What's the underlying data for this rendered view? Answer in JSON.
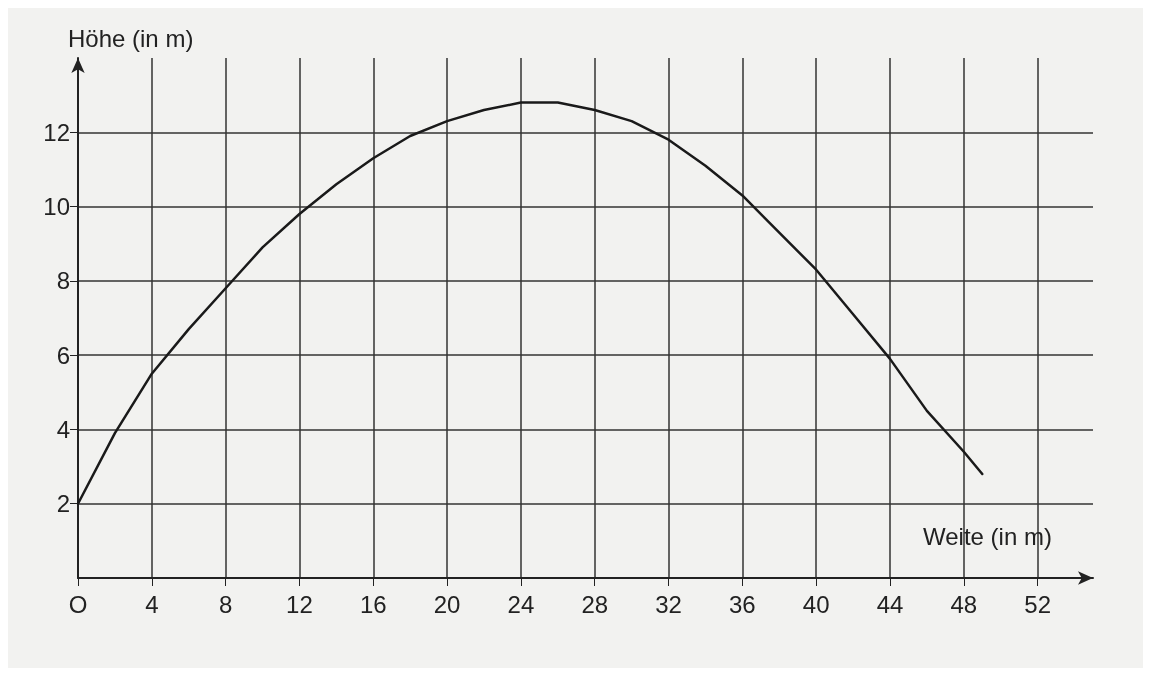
{
  "chart_data": {
    "type": "line",
    "xlabel": "Weite (in m)",
    "ylabel": "Höhe (in m)",
    "x": [
      0,
      2,
      4,
      6,
      8,
      10,
      12,
      14,
      16,
      18,
      20,
      22,
      24,
      26,
      28,
      30,
      32,
      34,
      36,
      38,
      40,
      42,
      44,
      46,
      48,
      49
    ],
    "series": [
      {
        "color": "#1a1a1a",
        "values": [
          2,
          3.9,
          5.5,
          6.7,
          7.8,
          8.9,
          9.8,
          10.6,
          11.3,
          11.9,
          12.3,
          12.6,
          12.8,
          12.8,
          12.6,
          12.3,
          11.8,
          11.1,
          10.3,
          9.3,
          8.3,
          7.1,
          5.9,
          4.5,
          3.4,
          2.8
        ]
      }
    ],
    "xlim": [
      0,
      55
    ],
    "xticks": [
      {
        "value": 0,
        "label": "O"
      },
      4,
      8,
      12,
      16,
      20,
      24,
      28,
      32,
      36,
      40,
      44,
      48,
      52
    ],
    "ylim": [
      0,
      14
    ],
    "yticks": [
      2,
      4,
      6,
      8,
      10,
      12
    ],
    "grid": true,
    "marker": "none",
    "line_style": "solid"
  }
}
